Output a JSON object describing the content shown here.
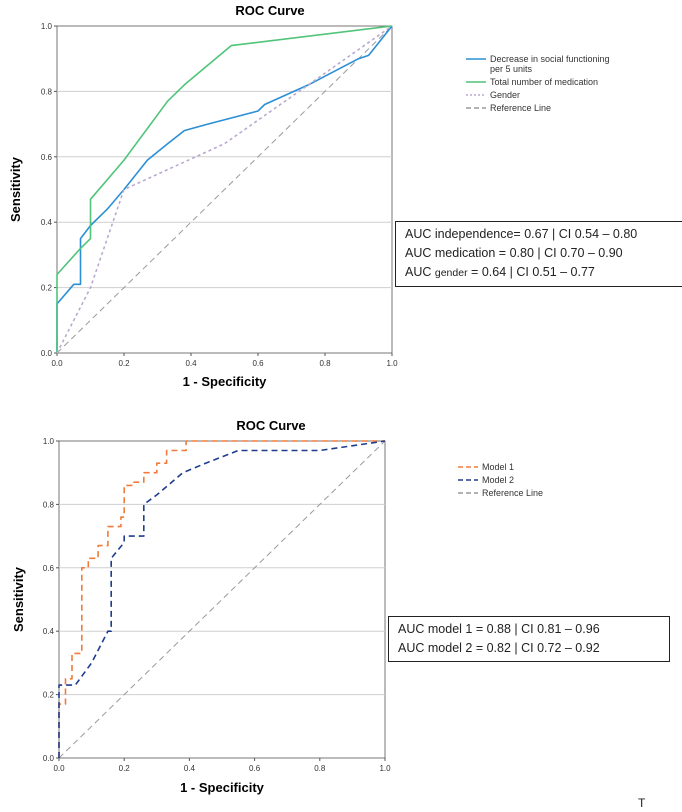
{
  "chart_data": [
    {
      "type": "line",
      "title": "ROC Curve",
      "xlabel": "1 - Specificity",
      "ylabel": "Sensitivity",
      "xlim": [
        0,
        1
      ],
      "ylim": [
        0,
        1
      ],
      "xticks": [
        "0.0",
        "0.2",
        "0.4",
        "0.6",
        "0.8",
        "1.0"
      ],
      "yticks": [
        "0.0",
        "0.2",
        "0.4",
        "0.6",
        "0.8",
        "1.0"
      ],
      "grid": "horizontal",
      "legend_position": "right",
      "series": [
        {
          "name": "Decrease in social functioning per 5 units",
          "legend": [
            "Decrease in social functioning",
            "per 5 units"
          ],
          "color": "#2b8fd6",
          "style": "solid",
          "x": [
            0,
            0,
            0.05,
            0.07,
            0.07,
            0.1,
            0.15,
            0.2,
            0.27,
            0.33,
            0.38,
            0.45,
            0.6,
            0.62,
            0.75,
            0.9,
            0.93,
            1.0
          ],
          "y": [
            0,
            0.15,
            0.21,
            0.21,
            0.35,
            0.39,
            0.44,
            0.5,
            0.59,
            0.64,
            0.68,
            0.7,
            0.74,
            0.76,
            0.82,
            0.9,
            0.91,
            1.0
          ]
        },
        {
          "name": "Total number of medication",
          "legend": [
            "Total number of medication"
          ],
          "color": "#4fc47a",
          "style": "solid",
          "x": [
            0,
            0,
            0.07,
            0.1,
            0.1,
            0.2,
            0.33,
            0.38,
            0.52,
            1.0
          ],
          "y": [
            0,
            0.24,
            0.32,
            0.35,
            0.47,
            0.59,
            0.77,
            0.82,
            0.94,
            1.0
          ]
        },
        {
          "name": "Gender",
          "legend": [
            "Gender"
          ],
          "color": "#b9a9cf",
          "style": "dotted",
          "x": [
            0,
            0.1,
            0.2,
            0.5,
            0.75,
            1.0
          ],
          "y": [
            0,
            0.2,
            0.5,
            0.64,
            0.82,
            1.0
          ]
        },
        {
          "name": "Reference Line",
          "legend": [
            "Reference Line"
          ],
          "color": "#9a9a9a",
          "style": "dashed",
          "x": [
            0,
            1
          ],
          "y": [
            0,
            1
          ]
        }
      ],
      "auc_box": [
        {
          "prefix": "AUC ",
          "sub": "",
          "text": "independence= 0.67 | CI 0.54 – 0.80"
        },
        {
          "prefix": "AUC ",
          "sub": "",
          "text": "medication = 0.80 | CI 0.70 – 0.90"
        },
        {
          "prefix": "AUC ",
          "sub": "gender",
          "text": " = 0.64 | CI 0.51 – 0.77"
        }
      ]
    },
    {
      "type": "line",
      "title": "ROC Curve",
      "xlabel": "1 - Specificity",
      "ylabel": "Sensitivity",
      "xlim": [
        0,
        1
      ],
      "ylim": [
        0,
        1
      ],
      "xticks": [
        "0.0",
        "0.2",
        "0.4",
        "0.6",
        "0.8",
        "1.0"
      ],
      "yticks": [
        "0.0",
        "0.2",
        "0.4",
        "0.6",
        "0.8",
        "1.0"
      ],
      "grid": "horizontal",
      "legend_position": "right",
      "series": [
        {
          "name": "Model 1",
          "legend": [
            "Model 1"
          ],
          "color": "#f07b3a",
          "style": "dashed",
          "x": [
            0,
            0,
            0.02,
            0.02,
            0.04,
            0.04,
            0.07,
            0.07,
            0.09,
            0.09,
            0.12,
            0.12,
            0.15,
            0.15,
            0.19,
            0.19,
            0.2,
            0.2,
            0.23,
            0.23,
            0.26,
            0.26,
            0.3,
            0.3,
            0.33,
            0.33,
            0.36,
            0.36,
            0.39,
            0.39,
            1.0
          ],
          "y": [
            0,
            0.17,
            0.17,
            0.25,
            0.25,
            0.33,
            0.33,
            0.6,
            0.6,
            0.63,
            0.63,
            0.67,
            0.67,
            0.73,
            0.73,
            0.76,
            0.76,
            0.86,
            0.86,
            0.87,
            0.87,
            0.9,
            0.9,
            0.93,
            0.93,
            0.97,
            0.97,
            0.97,
            0.97,
            1.0,
            1.0
          ]
        },
        {
          "name": "Model 2",
          "legend": [
            "Model 2"
          ],
          "color": "#1f3c8f",
          "style": "dashed",
          "x": [
            0,
            0,
            0.05,
            0.1,
            0.15,
            0.16,
            0.16,
            0.2,
            0.2,
            0.22,
            0.26,
            0.26,
            0.3,
            0.38,
            0.45,
            0.55,
            0.8,
            1.0
          ],
          "y": [
            0,
            0.23,
            0.23,
            0.3,
            0.4,
            0.4,
            0.63,
            0.68,
            0.7,
            0.7,
            0.7,
            0.8,
            0.83,
            0.9,
            0.93,
            0.97,
            0.97,
            1.0
          ]
        },
        {
          "name": "Reference Line",
          "legend": [
            "Reference Line"
          ],
          "color": "#9a9a9a",
          "style": "dashed",
          "x": [
            0,
            1
          ],
          "y": [
            0,
            1
          ]
        }
      ],
      "auc_box": [
        {
          "prefix": "AUC ",
          "sub": "",
          "text": "model 1 = 0.88 | CI 0.81 – 0.96"
        },
        {
          "prefix": "AUC ",
          "sub": "",
          "text": "model 2 = 0.82 | CI 0.72 – 0.92"
        }
      ]
    }
  ],
  "corner_mark": "T"
}
